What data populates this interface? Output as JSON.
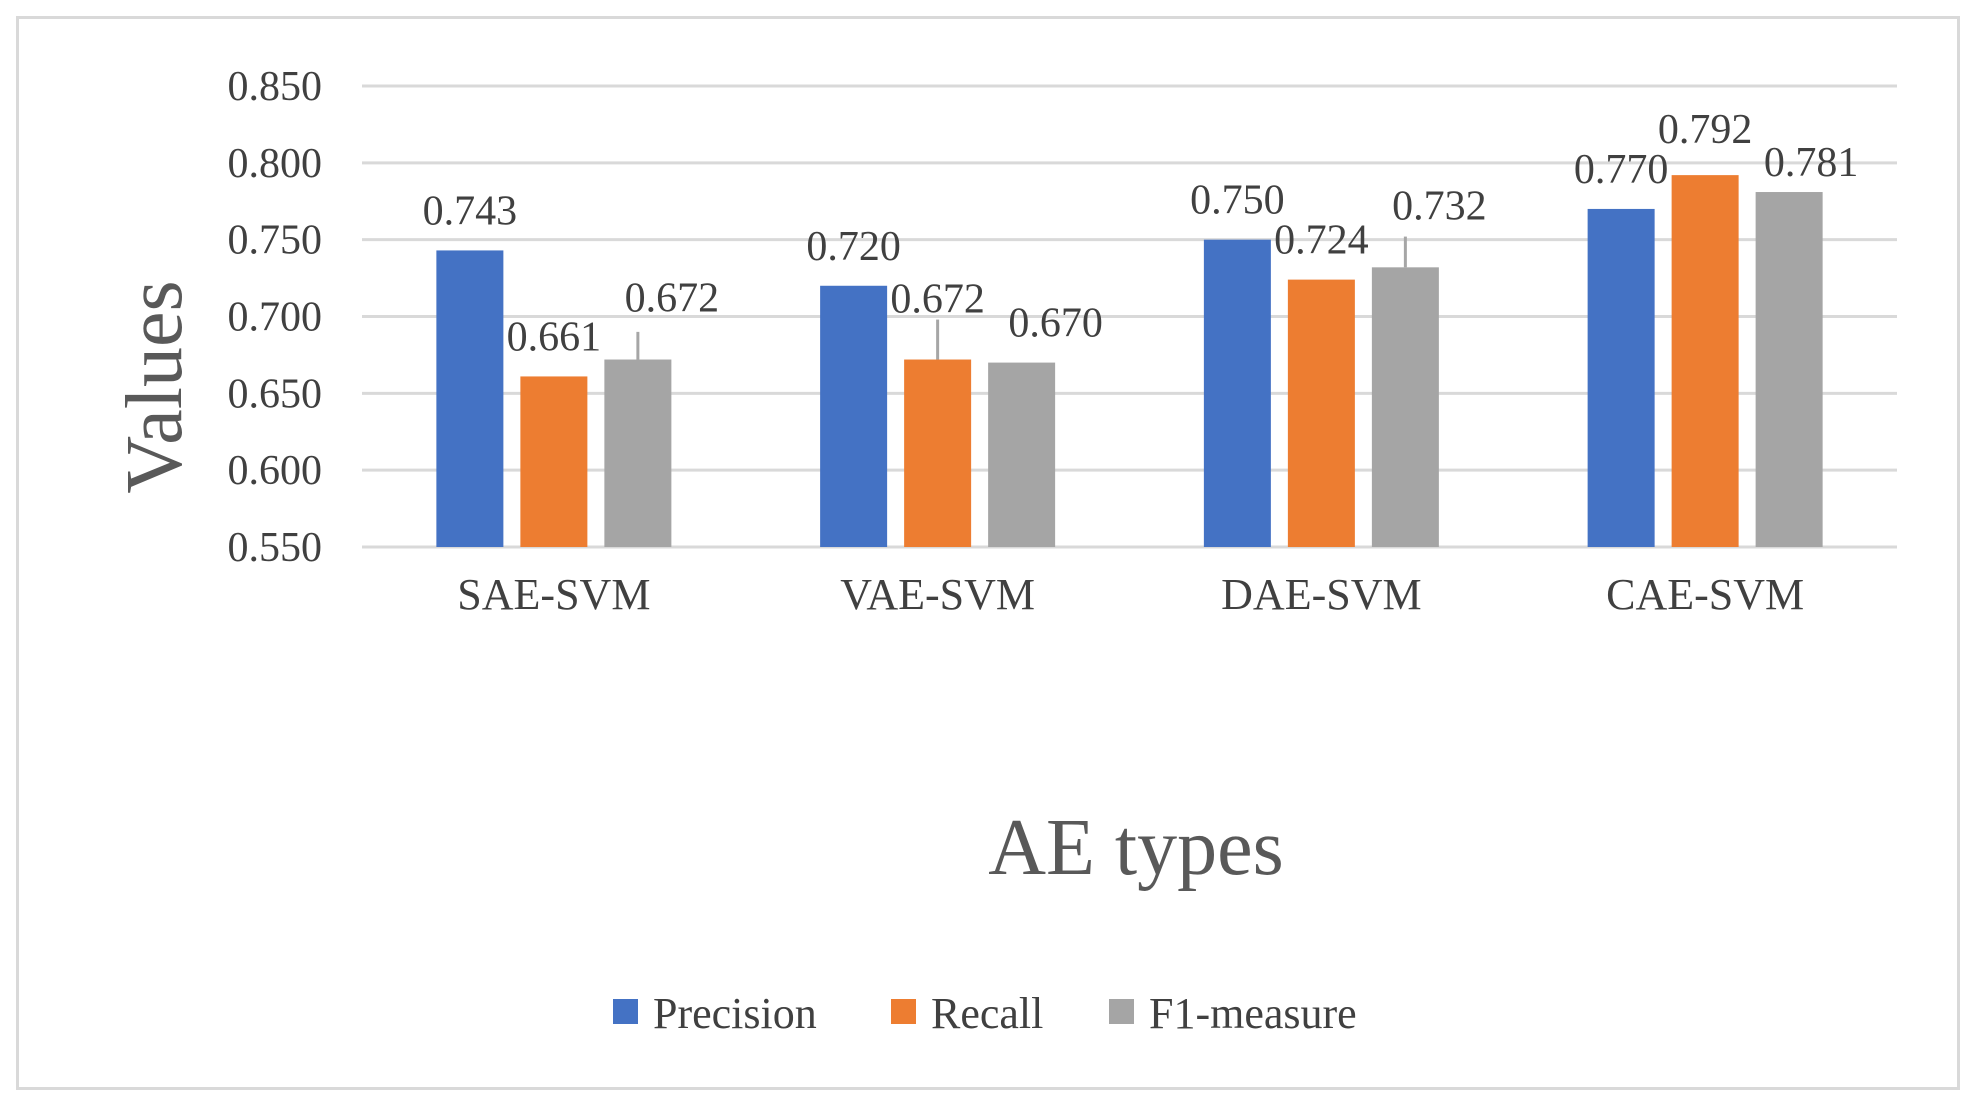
{
  "chart_data": {
    "type": "bar",
    "title": "",
    "xlabel": "AE types",
    "ylabel": "Values",
    "ylim": [
      0.55,
      0.85
    ],
    "yticks": [
      0.55,
      0.6,
      0.65,
      0.7,
      0.75,
      0.8,
      0.85
    ],
    "ytick_labels": [
      "0.550",
      "0.600",
      "0.650",
      "0.700",
      "0.750",
      "0.800",
      "0.850"
    ],
    "grid": true,
    "legend_position": "bottom",
    "categories": [
      "SAE-SVM",
      "VAE-SVM",
      "DAE-SVM",
      "CAE-SVM"
    ],
    "series": [
      {
        "name": "Precision",
        "color": "#4472c4",
        "values": [
          0.743,
          0.72,
          0.75,
          0.77
        ],
        "labels": [
          "0.743",
          "0.720",
          "0.750",
          "0.770"
        ]
      },
      {
        "name": "Recall",
        "color": "#ed7d31",
        "values": [
          0.661,
          0.672,
          0.724,
          0.792
        ],
        "labels": [
          "0.661",
          "0.672",
          "0.724",
          "0.792"
        ]
      },
      {
        "name": "F1-measure",
        "color": "#a5a5a5",
        "values": [
          0.672,
          0.67,
          0.732,
          0.781
        ],
        "labels": [
          "0.672",
          "0.670",
          "0.732",
          "0.781"
        ]
      }
    ],
    "error_bars": {
      "Recall": [
        null,
        0.026,
        null,
        null
      ],
      "F1-measure": [
        0.018,
        null,
        0.02,
        null
      ]
    }
  }
}
